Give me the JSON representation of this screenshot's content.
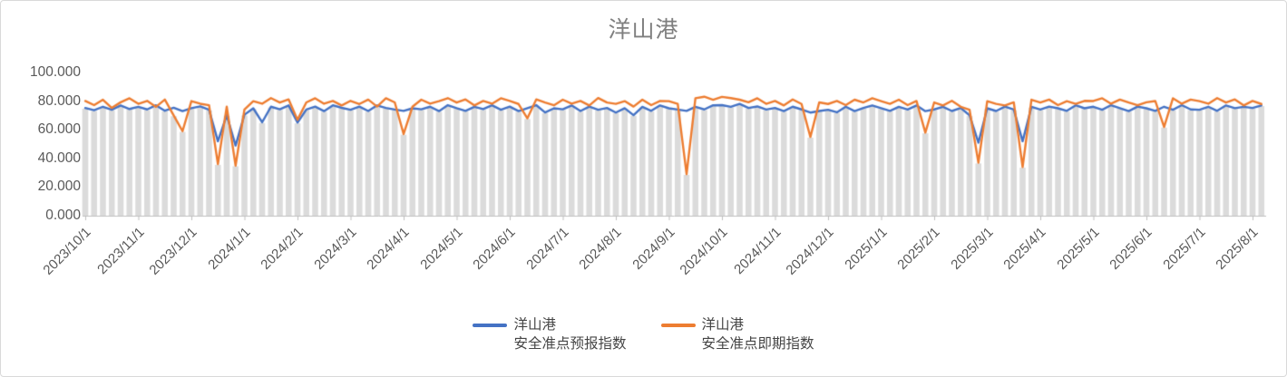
{
  "chart_data": {
    "type": "line",
    "title": "洋山港",
    "xlabel": "",
    "ylabel": "",
    "ylim": [
      0,
      100
    ],
    "grid": false,
    "legend_position": "bottom",
    "y_tick_labels": [
      "0.000",
      "20.000",
      "40.000",
      "60.000",
      "80.000",
      "100.000"
    ],
    "x_tick_labels": [
      "2023/10/1",
      "2023/11/1",
      "2023/12/1",
      "2024/1/1",
      "2024/2/1",
      "2024/3/1",
      "2024/4/1",
      "2024/5/1",
      "2024/6/1",
      "2024/7/1",
      "2024/8/1",
      "2024/9/1",
      "2024/10/1",
      "2024/11/1",
      "2024/12/1",
      "2025/1/1",
      "2025/2/1",
      "2025/3/1",
      "2025/4/1",
      "2025/5/1",
      "2025/6/1",
      "2025/7/1",
      "2025/8/1"
    ],
    "points_per_month": 6,
    "background_bars": {
      "color": "#dbdbdb",
      "derive": "min_of_series"
    },
    "series": [
      {
        "name": "洋山港\n安全准点预报指数",
        "color": "#4472C4",
        "values": [
          75.2,
          73.6,
          76.1,
          74.0,
          77.0,
          74.5,
          76.0,
          74.2,
          77.1,
          73.3,
          75.4,
          73.0,
          75.1,
          76.3,
          74.0,
          52.0,
          70.2,
          49.0,
          70.5,
          75.0,
          65.2,
          76.1,
          74.3,
          77.0,
          65.0,
          74.1,
          76.2,
          73.0,
          77.1,
          75.3,
          74.0,
          76.2,
          73.1,
          77.0,
          75.2,
          74.1,
          73.2,
          75.0,
          74.3,
          76.1,
          73.0,
          77.2,
          75.1,
          73.2,
          76.0,
          74.4,
          77.1,
          74.0,
          76.2,
          73.0,
          75.1,
          77.2,
          72.1,
          75.0,
          74.3,
          77.0,
          73.1,
          76.2,
          74.0,
          75.2,
          72.0,
          75.1,
          70.2,
          76.0,
          73.2,
          77.0,
          75.0,
          74.1,
          73.2,
          76.0,
          74.2,
          77.1,
          77.2,
          76.0,
          78.1,
          75.2,
          76.3,
          74.1,
          75.2,
          73.0,
          76.1,
          74.2,
          72.0,
          73.1,
          74.0,
          72.2,
          76.1,
          73.0,
          75.2,
          77.0,
          75.1,
          73.2,
          76.0,
          74.1,
          77.0,
          73.0,
          74.2,
          76.0,
          73.1,
          75.2,
          70.1,
          51.0,
          75.0,
          73.1,
          76.2,
          74.1,
          52.0,
          76.0,
          74.1,
          76.2,
          75.0,
          73.2,
          77.1,
          75.0,
          76.1,
          74.0,
          77.2,
          75.1,
          73.0,
          76.2,
          75.0,
          73.2,
          76.1,
          74.0,
          77.2,
          74.2,
          74.0,
          76.1,
          73.2,
          77.0,
          75.1,
          76.0,
          75.2,
          77.0
        ]
      },
      {
        "name": "洋山港\n安全准点即期指数",
        "color": "#ED7D31",
        "values": [
          80.1,
          77.2,
          81.0,
          75.3,
          79.2,
          82.0,
          78.1,
          80.2,
          76.0,
          81.1,
          70.0,
          59.0,
          80.0,
          78.2,
          77.1,
          36.0,
          76.2,
          35.0,
          74.1,
          80.0,
          78.2,
          82.1,
          79.0,
          81.2,
          67.0,
          79.1,
          82.0,
          78.2,
          80.1,
          77.0,
          80.2,
          78.0,
          81.1,
          76.2,
          82.0,
          79.1,
          57.0,
          76.1,
          81.0,
          78.2,
          80.0,
          82.1,
          79.0,
          81.2,
          77.0,
          80.1,
          78.2,
          82.0,
          80.1,
          78.0,
          68.0,
          81.2,
          79.0,
          77.1,
          81.0,
          78.2,
          80.1,
          77.0,
          82.2,
          79.0,
          78.1,
          80.0,
          76.2,
          81.0,
          77.2,
          80.1,
          80.0,
          78.1,
          29.0,
          82.0,
          83.1,
          81.0,
          83.0,
          82.1,
          81.0,
          79.2,
          82.0,
          78.1,
          80.1,
          77.0,
          81.2,
          78.0,
          55.0,
          79.1,
          78.0,
          80.1,
          77.2,
          81.0,
          79.1,
          82.0,
          80.0,
          78.1,
          81.0,
          77.2,
          80.1,
          58.0,
          79.1,
          77.0,
          80.2,
          76.1,
          74.0,
          37.0,
          80.0,
          78.1,
          77.0,
          79.2,
          34.0,
          81.0,
          79.0,
          81.1,
          77.2,
          80.0,
          78.1,
          80.2,
          80.1,
          82.0,
          78.2,
          81.1,
          79.0,
          77.1,
          79.2,
          80.1,
          62.0,
          82.0,
          78.2,
          81.1,
          80.0,
          78.2,
          82.1,
          79.0,
          81.2,
          77.0,
          80.1,
          78.0
        ]
      }
    ]
  },
  "legend": {
    "items": [
      {
        "line1": "洋山港",
        "line2": "安全准点预报指数",
        "color": "#4472C4"
      },
      {
        "line1": "洋山港",
        "line2": "安全准点即期指数",
        "color": "#ED7D31"
      }
    ]
  },
  "colors": {
    "axis_line": "#bfbfbf",
    "axis_text": "#595959",
    "title_text": "#7f7f7f",
    "bar_fill": "#dbdbdb",
    "card_border": "#d9d9d9"
  }
}
